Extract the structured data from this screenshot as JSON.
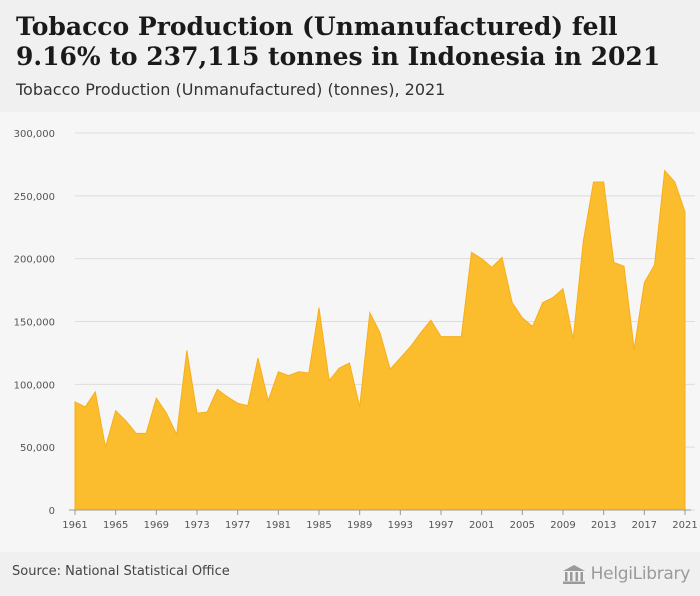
{
  "header": {
    "title": "Tobacco Production (Unmanufactured) fell 9.16% to 237,115 tonnes in Indonesia in 2021",
    "subtitle": "Tobacco Production (Unmanufactured) (tonnes), 2021"
  },
  "footer": {
    "source": "Source: National Statistical Office",
    "brand": "HelgiLibrary"
  },
  "colors": {
    "area_fill": "#fbbc2e",
    "area_stroke": "#f5b01a",
    "grid": "#dddddd",
    "header_bg": "#f0f0f0"
  },
  "chart_data": {
    "type": "area",
    "title": "Tobacco Production (Unmanufactured) (tonnes), 2021",
    "xlabel": "",
    "ylabel": "",
    "ylim": [
      0,
      300000
    ],
    "yticks": [
      0,
      50000,
      100000,
      150000,
      200000,
      250000,
      300000
    ],
    "ytick_labels": [
      "0",
      "50,000",
      "100,000",
      "150,000",
      "200,000",
      "250,000",
      "300,000"
    ],
    "xticks": [
      1961,
      1965,
      1969,
      1973,
      1977,
      1981,
      1985,
      1989,
      1993,
      1997,
      2001,
      2005,
      2009,
      2013,
      2017,
      2021
    ],
    "grid": true,
    "x": [
      1961,
      1962,
      1963,
      1964,
      1965,
      1966,
      1967,
      1968,
      1969,
      1970,
      1971,
      1972,
      1973,
      1974,
      1975,
      1976,
      1977,
      1978,
      1979,
      1980,
      1981,
      1982,
      1983,
      1984,
      1985,
      1986,
      1987,
      1988,
      1989,
      1990,
      1991,
      1992,
      1993,
      1994,
      1995,
      1996,
      1997,
      1998,
      1999,
      2000,
      2001,
      2002,
      2003,
      2004,
      2005,
      2006,
      2007,
      2008,
      2009,
      2010,
      2011,
      2012,
      2013,
      2014,
      2015,
      2016,
      2017,
      2018,
      2019,
      2020,
      2021
    ],
    "series": [
      {
        "values": [
          86000,
          82000,
          94000,
          50000,
          79000,
          71000,
          61000,
          61000,
          89000,
          77000,
          60000,
          127000,
          77000,
          78000,
          96000,
          90000,
          85000,
          83000,
          121000,
          87000,
          110000,
          107000,
          110000,
          109000,
          161000,
          103000,
          113000,
          117000,
          82000,
          157000,
          141000,
          112000,
          121000,
          130000,
          141000,
          151000,
          138000,
          138000,
          138000,
          205000,
          200000,
          193000,
          201000,
          165000,
          153000,
          146000,
          165000,
          169000,
          176000,
          136000,
          214000,
          261000,
          261000,
          197000,
          194000,
          128000,
          181000,
          195000,
          270000,
          261000,
          237115
        ]
      }
    ]
  }
}
